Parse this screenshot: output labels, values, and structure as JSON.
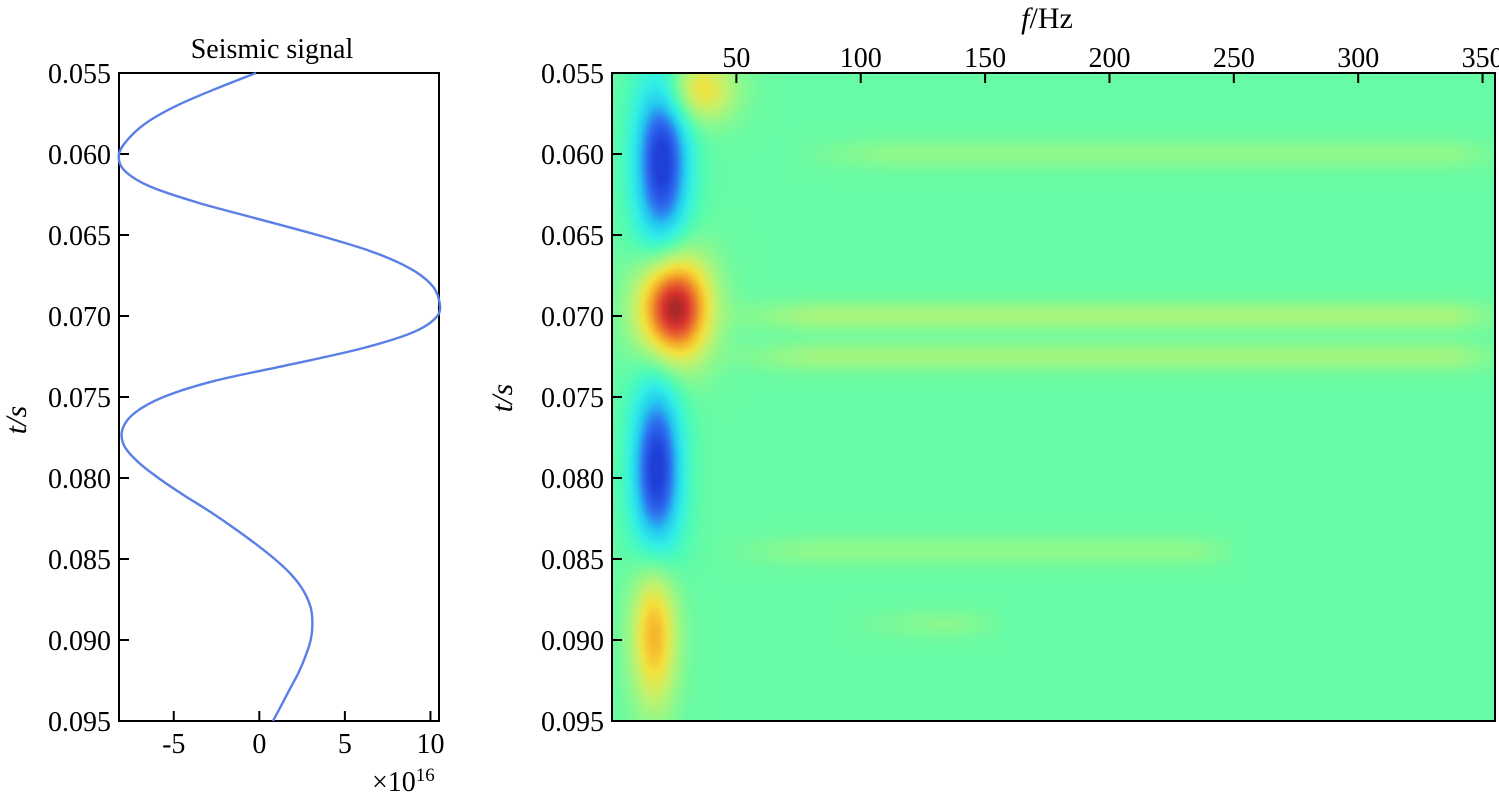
{
  "chart_data": [
    {
      "type": "line",
      "title": "Seismic signal",
      "xlabel": "",
      "ylabel": "t/s",
      "x_multiplier": "×10",
      "x_multiplier_exp": "16",
      "xlim": [
        -8.2,
        10.5
      ],
      "ylim": [
        0.055,
        0.095
      ],
      "y_inverted": true,
      "grid": false,
      "xticks": [
        -5,
        0,
        5,
        10
      ],
      "yticks": [
        "0.055",
        "0.060",
        "0.065",
        "0.070",
        "0.075",
        "0.080",
        "0.085",
        "0.090",
        "0.095"
      ],
      "series": [
        {
          "color": "#5a7fe6",
          "t": [
            0.055,
            0.056,
            0.057,
            0.058,
            0.059,
            0.06,
            0.061,
            0.062,
            0.063,
            0.064,
            0.065,
            0.066,
            0.067,
            0.068,
            0.069,
            0.07,
            0.071,
            0.072,
            0.073,
            0.074,
            0.075,
            0.076,
            0.077,
            0.078,
            0.079,
            0.08,
            0.081,
            0.082,
            0.083,
            0.084,
            0.085,
            0.086,
            0.087,
            0.088,
            0.089,
            0.09,
            0.091,
            0.092,
            0.093,
            0.094,
            0.095
          ],
          "amplitude": [
            -0.2,
            -2.6,
            -4.8,
            -6.5,
            -7.6,
            -8.2,
            -7.9,
            -6.4,
            -3.6,
            -0.1,
            3.4,
            6.5,
            8.7,
            10.0,
            10.5,
            10.4,
            9.0,
            6.0,
            1.8,
            -2.6,
            -5.6,
            -7.3,
            -8.0,
            -7.9,
            -7.1,
            -5.9,
            -4.5,
            -3.0,
            -1.6,
            -0.3,
            0.9,
            1.9,
            2.6,
            3.0,
            3.1,
            3.0,
            2.7,
            2.3,
            1.8,
            1.3,
            0.8
          ]
        }
      ]
    },
    {
      "type": "heatmap",
      "title": "",
      "xlabel": "f/Hz",
      "xlabel_italic": "f",
      "xlabel_rest": "/Hz",
      "ylabel": "t/s",
      "xaxis_position": "top",
      "xlim": [
        0,
        355
      ],
      "ylim": [
        0.055,
        0.095
      ],
      "y_inverted": true,
      "grid": false,
      "colorbar": false,
      "xticks": [
        50,
        100,
        150,
        200,
        250,
        300,
        350
      ],
      "yticks": [
        "0.055",
        "0.060",
        "0.065",
        "0.070",
        "0.075",
        "0.080",
        "0.085",
        "0.090",
        "0.095"
      ],
      "colormap": [
        "#1f3fd8",
        "#2f6ff0",
        "#24c8f0",
        "#32f0e6",
        "#50fcb4",
        "#8cf98e",
        "#c4f26c",
        "#f4e23e",
        "#f5b02a",
        "#ea6b2e",
        "#d8302e",
        "#8a2626"
      ],
      "background_level": 0.4,
      "features": [
        {
          "kind": "negative",
          "f": 20,
          "t": 0.0605,
          "df": 11,
          "dt": 0.0055,
          "amp": 0.42
        },
        {
          "kind": "positive",
          "f": 25,
          "t": 0.0695,
          "df": 14,
          "dt": 0.0032,
          "amp": 0.6
        },
        {
          "kind": "negative",
          "f": 18,
          "t": 0.0795,
          "df": 10,
          "dt": 0.0055,
          "amp": 0.42
        },
        {
          "kind": "positive",
          "f": 17,
          "t": 0.0895,
          "df": 9,
          "dt": 0.0045,
          "amp": 0.33
        },
        {
          "kind": "positive",
          "f": 35,
          "t": 0.056,
          "df": 14,
          "dt": 0.002,
          "amp": 0.25
        },
        {
          "kind": "ridge",
          "t": 0.07,
          "f_from": 40,
          "f_to": 355,
          "level": 0.1
        },
        {
          "kind": "ridge",
          "t": 0.0725,
          "f_from": 40,
          "f_to": 355,
          "level": 0.09
        },
        {
          "kind": "ridge",
          "t": 0.06,
          "f_from": 70,
          "f_to": 355,
          "level": 0.06
        },
        {
          "kind": "ridge",
          "t": 0.0845,
          "f_from": 40,
          "f_to": 250,
          "level": 0.06
        },
        {
          "kind": "ridge",
          "t": 0.089,
          "f_from": 90,
          "f_to": 155,
          "level": 0.05
        }
      ]
    }
  ]
}
